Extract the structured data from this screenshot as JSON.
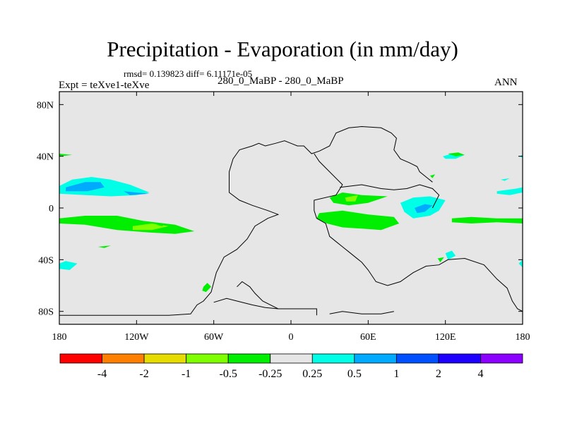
{
  "header": {
    "title": "Precipitation - Evaporation (in mm/day)",
    "stats": "rmsd= 0.139823 diff= 6.11171e-05",
    "case_label": "280_0_MaBP - 280_0_MaBP",
    "experiment_label": "Expt = teXve1-teXve",
    "season": "ANN"
  },
  "chart_data": {
    "type": "heatmap",
    "title": "Precipitation - Evaporation (in mm/day)",
    "projection": "cylindrical equidistant",
    "xlim": [
      -180,
      180
    ],
    "ylim": [
      -90,
      90
    ],
    "x_ticks": [
      {
        "value": -180,
        "label": "180"
      },
      {
        "value": -120,
        "label": "120W"
      },
      {
        "value": -60,
        "label": "60W"
      },
      {
        "value": 0,
        "label": "0"
      },
      {
        "value": 60,
        "label": "60E"
      },
      {
        "value": 120,
        "label": "120E"
      },
      {
        "value": 180,
        "label": "180"
      }
    ],
    "y_ticks": [
      {
        "value": 80,
        "label": "80N"
      },
      {
        "value": 40,
        "label": "40N"
      },
      {
        "value": 0,
        "label": "0"
      },
      {
        "value": -40,
        "label": "40S"
      },
      {
        "value": -80,
        "label": "80S"
      }
    ],
    "background_color": "#e6e6e6",
    "colorbar": {
      "labels": [
        "-4",
        "-2",
        "-1",
        "-0.5",
        "-0.25",
        "0.25",
        "0.5",
        "1",
        "2",
        "4"
      ],
      "colors": [
        "#ff0000",
        "#ff8000",
        "#e6dc00",
        "#80ff00",
        "#00ee00",
        "#e6e6e6",
        "#00ffe6",
        "#00aaff",
        "#0050ff",
        "#1e00ff",
        "#8c00ff"
      ]
    },
    "contour_regions": [
      {
        "name": "north-pacific-band",
        "value_class": "0.25",
        "color": "#00ffe6",
        "lonlat": [
          [
            -180,
            17
          ],
          [
            -170,
            22
          ],
          [
            -155,
            24
          ],
          [
            -140,
            22
          ],
          [
            -125,
            18
          ],
          [
            -110,
            12
          ],
          [
            -120,
            10
          ],
          [
            -140,
            9
          ],
          [
            -160,
            10
          ],
          [
            -180,
            11
          ]
        ]
      },
      {
        "name": "north-pacific-core",
        "value_class": "0.5",
        "color": "#00aaff",
        "lonlat": [
          [
            -175,
            16
          ],
          [
            -160,
            20
          ],
          [
            -148,
            20
          ],
          [
            -145,
            16
          ],
          [
            -158,
            13
          ],
          [
            -175,
            13
          ]
        ]
      },
      {
        "name": "central-pacific-streak",
        "value_class": "0.5",
        "color": "#00aaff",
        "lonlat": [
          [
            -130,
            13
          ],
          [
            -110,
            11
          ],
          [
            -125,
            10
          ]
        ]
      },
      {
        "name": "south-pacific-band",
        "value_class": "-0.25",
        "color": "#00ee00",
        "lonlat": [
          [
            -180,
            -8
          ],
          [
            -160,
            -6
          ],
          [
            -135,
            -6
          ],
          [
            -115,
            -10
          ],
          [
            -90,
            -13
          ],
          [
            -75,
            -18
          ],
          [
            -90,
            -20
          ],
          [
            -110,
            -19
          ],
          [
            -135,
            -17
          ],
          [
            -160,
            -13
          ],
          [
            -180,
            -12
          ]
        ]
      },
      {
        "name": "south-pacific-core",
        "value_class": "-0.5",
        "color": "#80ff00",
        "lonlat": [
          [
            -123,
            -14
          ],
          [
            -108,
            -12
          ],
          [
            -95,
            -14
          ],
          [
            -108,
            -17
          ],
          [
            -123,
            -17
          ]
        ]
      },
      {
        "name": "north-atlantic-west",
        "value_class": "-0.25",
        "color": "#00ee00",
        "lonlat": [
          [
            -180,
            40
          ],
          [
            -170,
            41
          ],
          [
            -180,
            42
          ]
        ]
      },
      {
        "name": "south-pacific-blob",
        "value_class": "0.25",
        "color": "#00ffe6",
        "lonlat": [
          [
            -180,
            -43
          ],
          [
            -175,
            -41
          ],
          [
            -166,
            -43
          ],
          [
            -172,
            -48
          ],
          [
            -180,
            -47
          ]
        ]
      },
      {
        "name": "south-pacific-small",
        "value_class": "-0.25",
        "color": "#00ee00",
        "lonlat": [
          [
            -150,
            -30
          ],
          [
            -140,
            -29
          ],
          [
            -145,
            -31
          ]
        ]
      },
      {
        "name": "east-pacific-tiny",
        "value_class": "-0.25",
        "color": "#00ee00",
        "lonlat": [
          [
            -105,
            -13
          ],
          [
            -98,
            -12
          ],
          [
            -100,
            -14
          ]
        ]
      },
      {
        "name": "patagonia-blob",
        "value_class": "-0.25",
        "color": "#00ee00",
        "lonlat": [
          [
            -68,
            -61
          ],
          [
            -65,
            -58
          ],
          [
            -62,
            -61
          ],
          [
            -66,
            -65
          ],
          [
            -69,
            -64
          ]
        ]
      },
      {
        "name": "africa-north-blob",
        "value_class": "-0.25",
        "color": "#00ee00",
        "lonlat": [
          [
            30,
            8
          ],
          [
            40,
            12
          ],
          [
            55,
            10
          ],
          [
            75,
            9
          ],
          [
            60,
            4
          ],
          [
            45,
            2
          ],
          [
            33,
            4
          ]
        ]
      },
      {
        "name": "africa-north-core",
        "value_class": "-0.5",
        "color": "#80ff00",
        "lonlat": [
          [
            42,
            8
          ],
          [
            52,
            10
          ],
          [
            50,
            5
          ],
          [
            43,
            5
          ]
        ]
      },
      {
        "name": "africa-south-blob",
        "value_class": "-0.25",
        "color": "#00ee00",
        "lonlat": [
          [
            22,
            -4
          ],
          [
            40,
            -2
          ],
          [
            60,
            -5
          ],
          [
            80,
            -7
          ],
          [
            84,
            -12
          ],
          [
            70,
            -17
          ],
          [
            55,
            -16
          ],
          [
            40,
            -15
          ],
          [
            28,
            -12
          ],
          [
            20,
            -8
          ]
        ]
      },
      {
        "name": "indian-ocean-blob",
        "value_class": "0.25",
        "color": "#00ffe6",
        "lonlat": [
          [
            85,
            4
          ],
          [
            95,
            8
          ],
          [
            108,
            9
          ],
          [
            120,
            6
          ],
          [
            115,
            -2
          ],
          [
            108,
            -6
          ],
          [
            95,
            -8
          ],
          [
            88,
            -3
          ]
        ]
      },
      {
        "name": "indian-ocean-core",
        "value_class": "0.5",
        "color": "#00aaff",
        "lonlat": [
          [
            96,
            0
          ],
          [
            104,
            3
          ],
          [
            110,
            2
          ],
          [
            104,
            -3
          ],
          [
            98,
            -4
          ]
        ]
      },
      {
        "name": "east-pacific-green",
        "value_class": "-0.25",
        "color": "#00ee00",
        "lonlat": [
          [
            125,
            -8
          ],
          [
            140,
            -7
          ],
          [
            160,
            -8
          ],
          [
            180,
            -8
          ],
          [
            180,
            -12
          ],
          [
            160,
            -11
          ],
          [
            140,
            -12
          ],
          [
            125,
            -11
          ]
        ]
      },
      {
        "name": "north-west-pacific",
        "value_class": "0.25",
        "color": "#00ffe6",
        "lonlat": [
          [
            118,
            40
          ],
          [
            125,
            42
          ],
          [
            135,
            41
          ],
          [
            128,
            38
          ],
          [
            120,
            38
          ]
        ]
      },
      {
        "name": "north-east-pacific-green",
        "value_class": "-0.25",
        "color": "#00ee00",
        "lonlat": [
          [
            122,
            42
          ],
          [
            130,
            43
          ],
          [
            135,
            41
          ],
          [
            128,
            40
          ]
        ]
      },
      {
        "name": "subtropical-north-east",
        "value_class": "0.25",
        "color": "#00ffe6",
        "lonlat": [
          [
            160,
            13
          ],
          [
            175,
            15
          ],
          [
            180,
            16
          ],
          [
            180,
            12
          ],
          [
            170,
            10
          ],
          [
            160,
            11
          ]
        ]
      },
      {
        "name": "north-east-tiny",
        "value_class": "0.25",
        "color": "#00ffe6",
        "lonlat": [
          [
            163,
            22
          ],
          [
            170,
            23
          ],
          [
            166,
            21
          ]
        ]
      },
      {
        "name": "north-east-edge",
        "value_class": "0.25",
        "color": "#00ffe6",
        "lonlat": [
          [
            177,
            40
          ],
          [
            180,
            41
          ],
          [
            180,
            39
          ]
        ]
      },
      {
        "name": "south-east-blob",
        "value_class": "0.25",
        "color": "#00ffe6",
        "lonlat": [
          [
            177,
            -43
          ],
          [
            180,
            -40
          ],
          [
            180,
            -46
          ]
        ]
      },
      {
        "name": "south-indian-blob",
        "value_class": "0.25",
        "color": "#00ffe6",
        "lonlat": [
          [
            120,
            -35
          ],
          [
            125,
            -33
          ],
          [
            128,
            -37
          ],
          [
            122,
            -40
          ]
        ]
      },
      {
        "name": "south-indian-green",
        "value_class": "-0.25",
        "color": "#00ee00",
        "lonlat": [
          [
            114,
            -39
          ],
          [
            119,
            -38
          ],
          [
            116,
            -42
          ]
        ]
      },
      {
        "name": "pacific-small-green",
        "value_class": "-0.25",
        "color": "#00ee00",
        "lonlat": [
          [
            108,
            25
          ],
          [
            112,
            26
          ],
          [
            110,
            23
          ]
        ]
      }
    ],
    "coastlines": [
      {
        "name": "americas-europe-coast",
        "lonlat": [
          [
            -180,
            -83
          ],
          [
            -95,
            -83
          ],
          [
            -78,
            -82
          ],
          [
            -73,
            -75
          ],
          [
            -68,
            -72
          ],
          [
            -62,
            -65
          ],
          [
            -58,
            -50
          ],
          [
            -52,
            -38
          ],
          [
            -42,
            -32
          ],
          [
            -34,
            -24
          ],
          [
            -28,
            -14
          ],
          [
            -18,
            -8
          ],
          [
            -10,
            -5
          ],
          [
            -18,
            -2
          ],
          [
            -30,
            2
          ],
          [
            -40,
            6
          ],
          [
            -48,
            12
          ],
          [
            -48,
            28
          ],
          [
            -45,
            38
          ],
          [
            -40,
            45
          ],
          [
            -30,
            48
          ],
          [
            -25,
            50
          ],
          [
            -20,
            48
          ],
          [
            -12,
            50
          ],
          [
            -5,
            52
          ],
          [
            0,
            50
          ],
          [
            5,
            48
          ],
          [
            10,
            48
          ],
          [
            16,
            42
          ],
          [
            22,
            44
          ],
          [
            30,
            48
          ],
          [
            35,
            58
          ],
          [
            45,
            62
          ],
          [
            55,
            63
          ],
          [
            70,
            62
          ],
          [
            78,
            58
          ],
          [
            82,
            54
          ],
          [
            80,
            45
          ],
          [
            85,
            38
          ],
          [
            92,
            35
          ],
          [
            98,
            32
          ],
          [
            100,
            28
          ],
          [
            105,
            24
          ],
          [
            110,
            20
          ]
        ]
      },
      {
        "name": "africa-coast",
        "lonlat": [
          [
            18,
            42
          ],
          [
            22,
            36
          ],
          [
            28,
            30
          ],
          [
            40,
            18
          ],
          [
            35,
            10
          ],
          [
            18,
            6
          ],
          [
            18,
            -2
          ],
          [
            20,
            -8
          ],
          [
            27,
            -12
          ],
          [
            30,
            -22
          ],
          [
            35,
            -26
          ],
          [
            40,
            -30
          ],
          [
            45,
            -34
          ],
          [
            50,
            -38
          ],
          [
            55,
            -42
          ],
          [
            60,
            -48
          ],
          [
            66,
            -57
          ],
          [
            75,
            -60
          ],
          [
            85,
            -57
          ],
          [
            95,
            -50
          ],
          [
            105,
            -45
          ],
          [
            115,
            -44
          ],
          [
            122,
            -40
          ],
          [
            135,
            -39
          ],
          [
            150,
            -44
          ],
          [
            160,
            -55
          ],
          [
            168,
            -62
          ],
          [
            172,
            -72
          ],
          [
            176,
            -78
          ],
          [
            180,
            -80
          ]
        ]
      },
      {
        "name": "asia-inner-coast",
        "lonlat": [
          [
            38,
            16
          ],
          [
            55,
            18
          ],
          [
            70,
            15
          ],
          [
            80,
            14
          ],
          [
            90,
            15
          ],
          [
            100,
            18
          ],
          [
            110,
            15
          ],
          [
            115,
            10
          ],
          [
            110,
            0
          ]
        ]
      },
      {
        "name": "south-america-ridge",
        "lonlat": [
          [
            -42,
            -61
          ],
          [
            -38,
            -57
          ],
          [
            -32,
            -61
          ],
          [
            -28,
            -66
          ],
          [
            -22,
            -72
          ],
          [
            -10,
            -78
          ],
          [
            20,
            -78
          ],
          [
            20,
            -83
          ]
        ]
      },
      {
        "name": "west-antarctic",
        "lonlat": [
          [
            -60,
            -73
          ],
          [
            -50,
            -70
          ],
          [
            -42,
            -72
          ],
          [
            -30,
            -75
          ],
          [
            -20,
            -77
          ],
          [
            -10,
            -78
          ]
        ]
      },
      {
        "name": "east-antarctic",
        "lonlat": [
          [
            80,
            -80
          ],
          [
            70,
            -82
          ],
          [
            55,
            -82
          ],
          [
            40,
            -80
          ],
          [
            30,
            -82
          ]
        ]
      }
    ]
  }
}
